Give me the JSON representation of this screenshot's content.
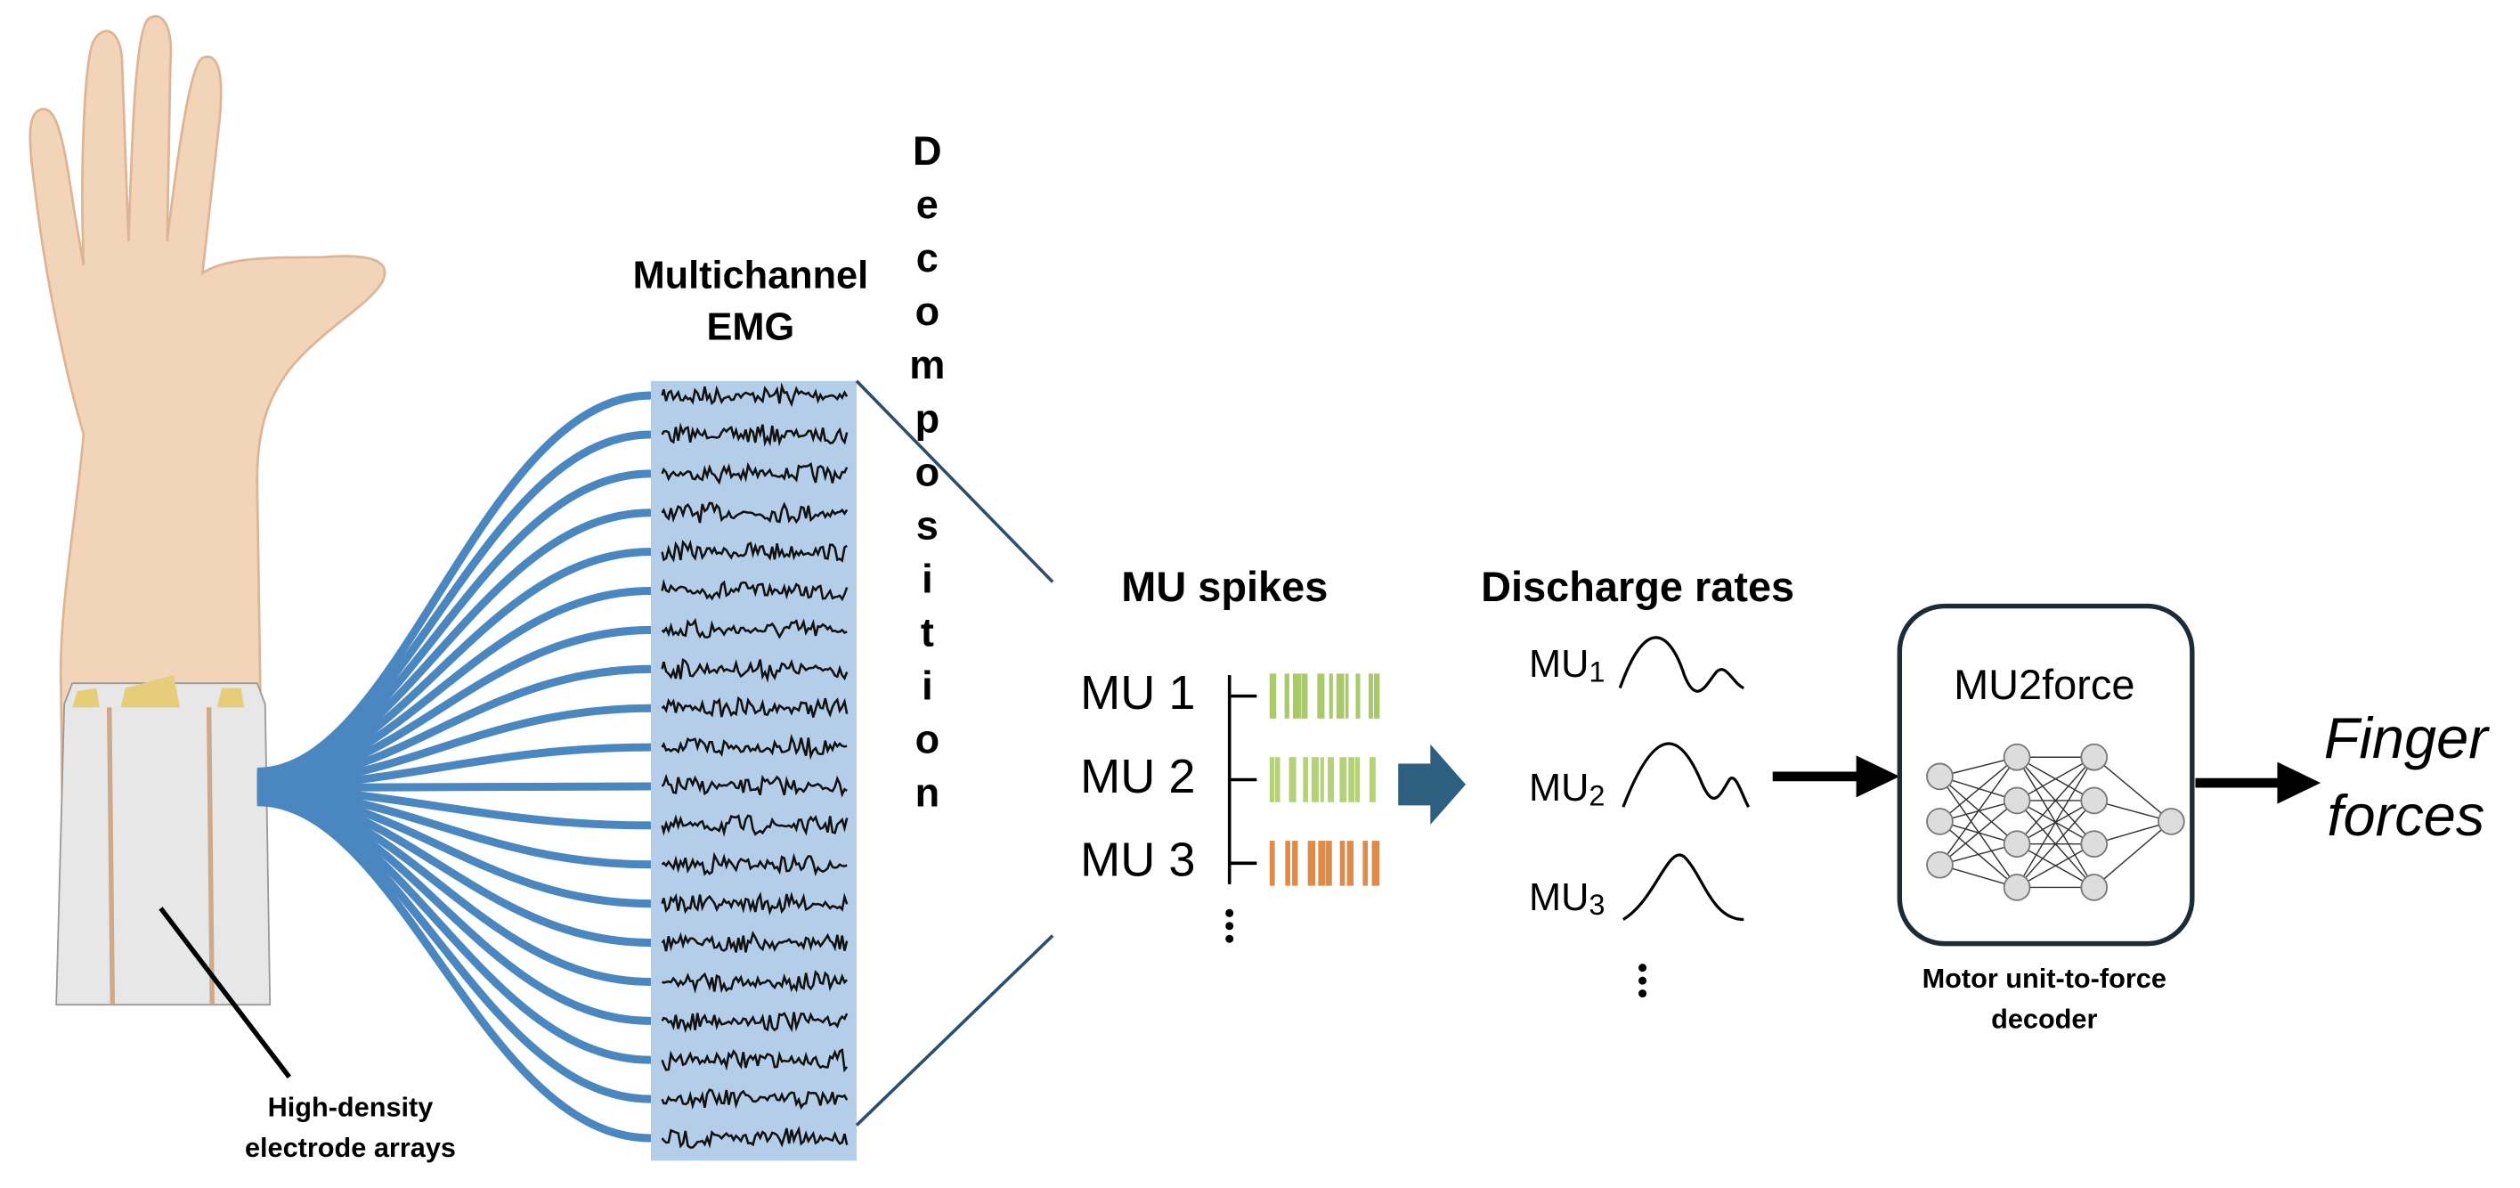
{
  "hand_label": {
    "lines": [
      "High-density",
      "electrode arrays"
    ]
  },
  "emg": {
    "title": [
      "Multichannel",
      "EMG"
    ]
  },
  "decomposition": "Decomposition",
  "mu_spikes": {
    "title": "MU spikes",
    "units": [
      "MU 1",
      "MU 2",
      "MU 3"
    ]
  },
  "discharge_rates": {
    "title": "Discharge rates",
    "units": [
      {
        "name": "MU",
        "index": "1"
      },
      {
        "name": "MU",
        "index": "2"
      },
      {
        "name": "MU",
        "index": "3"
      }
    ]
  },
  "decoder": {
    "name": "MU2force",
    "caption": [
      "Motor unit-to-force",
      "decoder"
    ]
  },
  "output": [
    "Finger",
    "forces"
  ]
}
